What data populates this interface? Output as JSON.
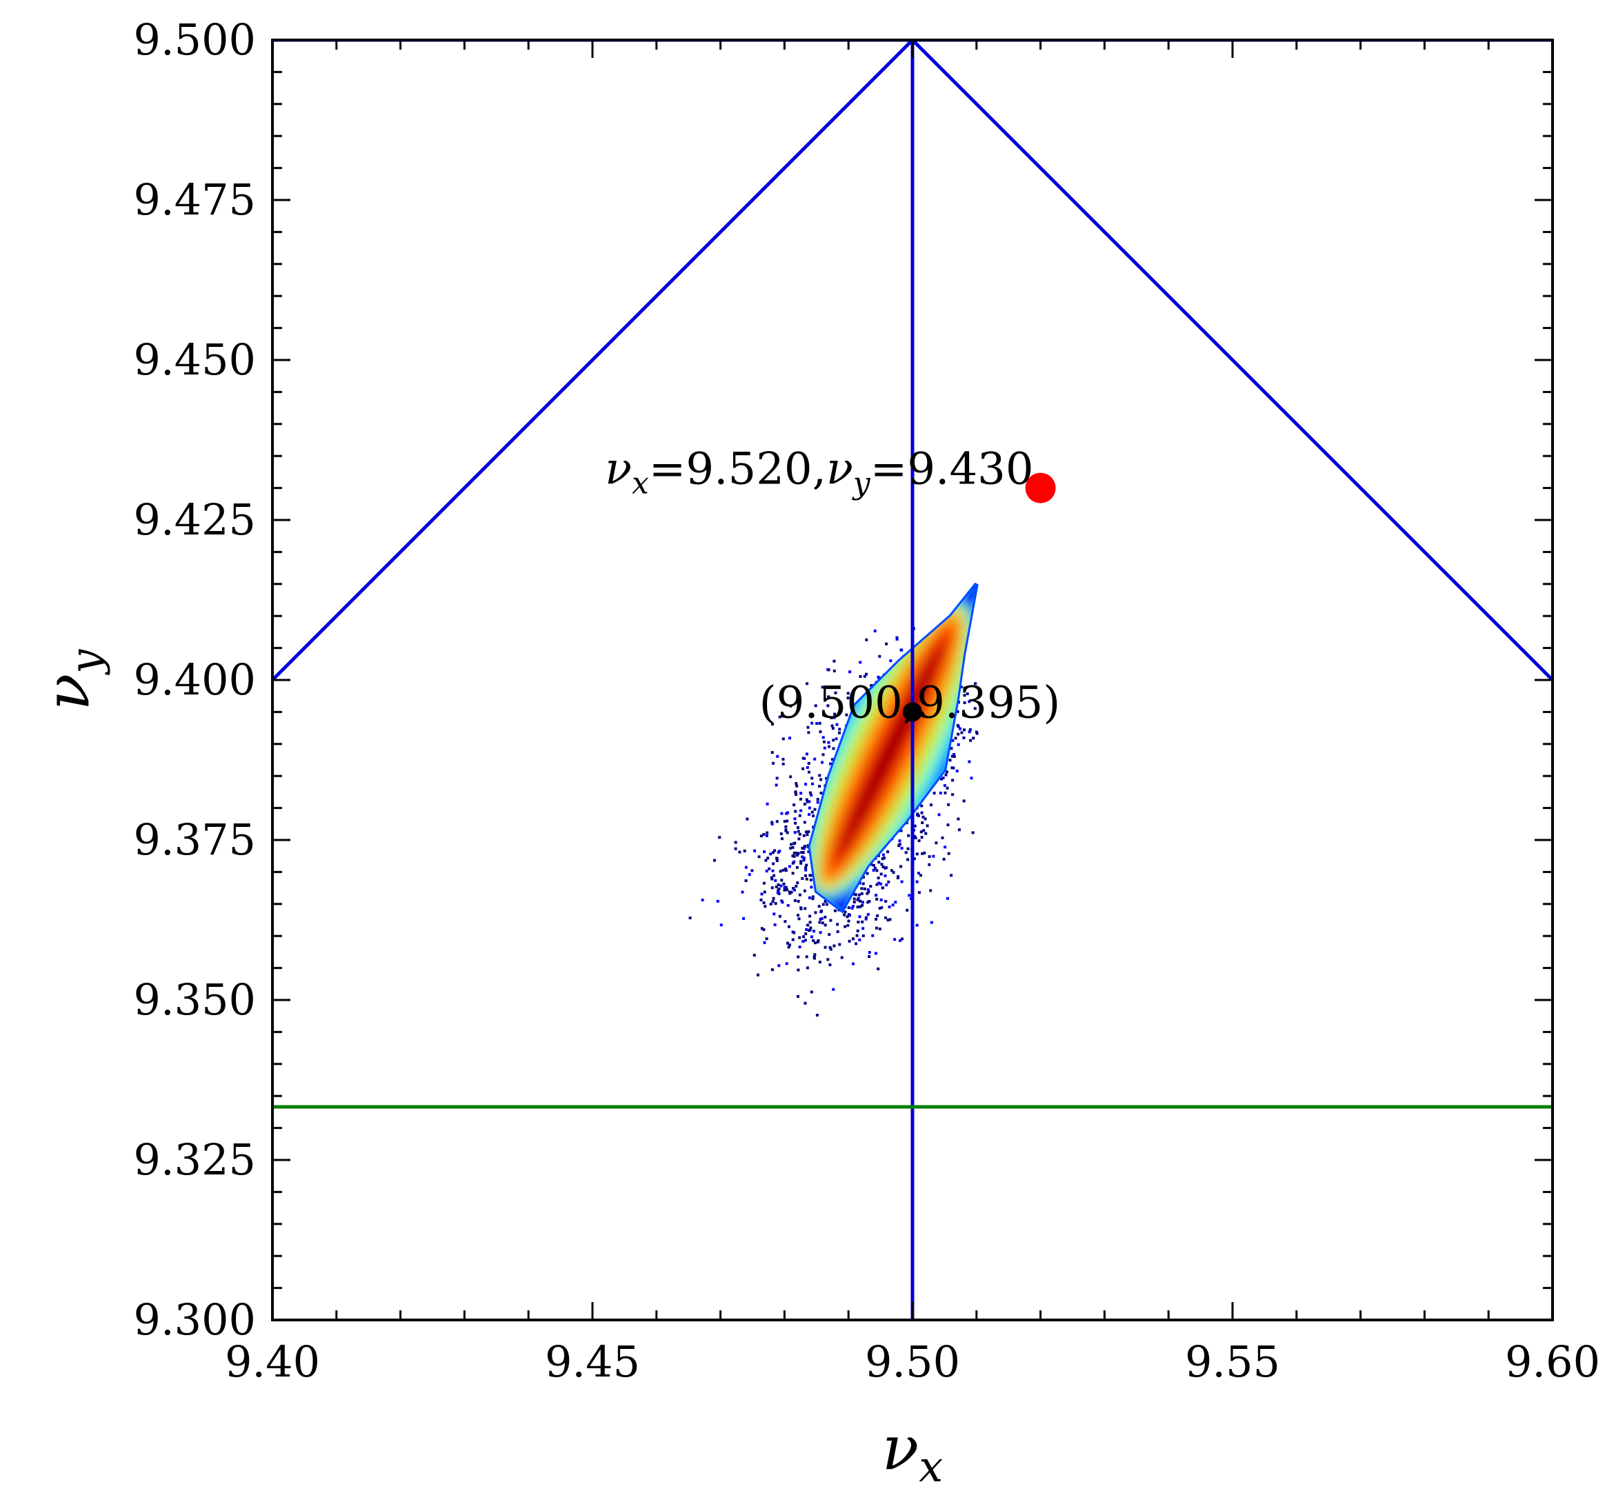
{
  "chart_data": {
    "type": "scatter",
    "x_axis": {
      "label": "ν",
      "label_sub": "x",
      "range": [
        9.4,
        9.6
      ],
      "ticks": [
        9.4,
        9.45,
        9.5,
        9.55,
        9.6
      ],
      "tick_labels": [
        "9.40",
        "9.45",
        "9.50",
        "9.55",
        "9.60"
      ],
      "minor_step": 0.01
    },
    "y_axis": {
      "label": "ν",
      "label_sub": "y",
      "range": [
        9.3,
        9.5
      ],
      "ticks": [
        9.3,
        9.325,
        9.35,
        9.375,
        9.4,
        9.425,
        9.45,
        9.475,
        9.5
      ],
      "tick_labels": [
        "9.300",
        "9.325",
        "9.350",
        "9.375",
        "9.400",
        "9.425",
        "9.450",
        "9.475",
        "9.500"
      ],
      "minor_step": 0.005
    },
    "grid": false,
    "resonance_lines": [
      {
        "color": "#0000dd",
        "points": [
          [
            9.4,
            9.4
          ],
          [
            9.5,
            9.5
          ]
        ]
      },
      {
        "color": "#0000dd",
        "points": [
          [
            9.5,
            9.5
          ],
          [
            9.6,
            9.4
          ]
        ]
      },
      {
        "color": "#0000dd",
        "points": [
          [
            9.5,
            9.3
          ],
          [
            9.5,
            9.5
          ]
        ]
      },
      {
        "color": "#0000dd",
        "points": [
          [
            9.4,
            9.5
          ],
          [
            9.6,
            9.5
          ]
        ]
      },
      {
        "color": "#008000",
        "points": [
          [
            9.4,
            9.3333
          ],
          [
            9.6,
            9.3333
          ]
        ]
      }
    ],
    "working_point": {
      "x": 9.52,
      "y": 9.43,
      "color": "#ff0000",
      "label_parts": [
        {
          "t": "ν",
          "style": "it"
        },
        {
          "t": "x",
          "style": "sub"
        },
        {
          "t": "=9.520,",
          "style": "rm"
        },
        {
          "t": "ν",
          "style": "it"
        },
        {
          "t": "y",
          "style": "sub"
        },
        {
          "t": "=9.430",
          "style": "rm"
        }
      ]
    },
    "center_point": {
      "x": 9.5,
      "y": 9.395,
      "color": "#000000",
      "label": "(9.500,9.395)"
    },
    "footprint": {
      "type": "heatmap",
      "colormap": "jet",
      "core_polygon": [
        [
          9.485,
          9.367
        ],
        [
          9.484,
          9.374
        ],
        [
          9.487,
          9.385
        ],
        [
          9.491,
          9.396
        ],
        [
          9.498,
          9.403
        ],
        [
          9.506,
          9.41
        ],
        [
          9.51,
          9.415
        ],
        [
          9.508,
          9.404
        ],
        [
          9.507,
          9.397
        ],
        [
          9.505,
          9.386
        ],
        [
          9.499,
          9.378
        ],
        [
          9.493,
          9.371
        ],
        [
          9.489,
          9.364
        ]
      ],
      "density_ridge": [
        [
          9.486,
          9.367
        ],
        [
          9.509,
          9.414
        ]
      ],
      "halo_range_x": [
        9.463,
        9.51
      ],
      "halo_range_y": [
        9.346,
        9.41
      ]
    }
  }
}
